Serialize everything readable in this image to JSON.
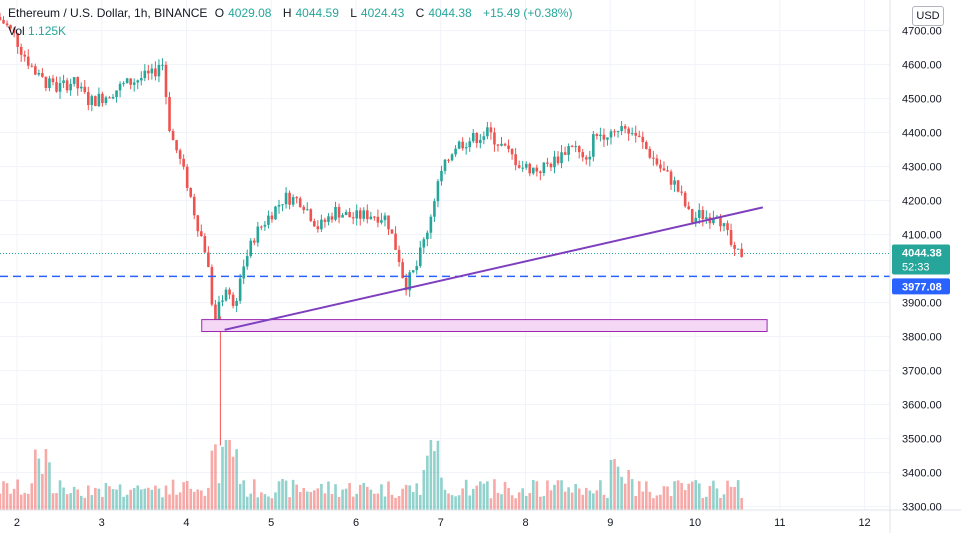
{
  "header": {
    "symbol": "Ethereum / U.S. Dollar, 1h, BINANCE",
    "open_label": "O",
    "open": "4029.08",
    "high_label": "H",
    "high": "4044.59",
    "low_label": "L",
    "low": "4024.43",
    "close_label": "C",
    "close": "4044.38",
    "change": "+15.49 (+0.38%)",
    "volume_label": "Vol",
    "volume": "1.125K"
  },
  "currency_button": "USD",
  "colors": {
    "up": "#26a69a",
    "down": "#ef5350",
    "trendline": "#7e3fbf",
    "support_line": "#2962ff",
    "zone_fill": "#f3d7f5",
    "zone_border": "#9c27b0"
  },
  "chart_data": {
    "type": "candlestick",
    "title": "Ethereum / U.S. Dollar, 1h, BINANCE",
    "x_ticks": [
      "2",
      "3",
      "4",
      "5",
      "6",
      "7",
      "8",
      "9",
      "10",
      "11",
      "12"
    ],
    "y_ticks": [
      "4700.00",
      "4600.00",
      "4500.00",
      "4400.00",
      "4300.00",
      "4200.00",
      "4100.00",
      "3900.00",
      "3800.00",
      "3700.00",
      "3600.00",
      "3500.00",
      "3400.00",
      "3300.00"
    ],
    "ylim": [
      3290,
      4790
    ],
    "xlim_days": [
      1.8,
      12.3
    ],
    "price_path_days": [
      1.8,
      1.9,
      2.0,
      2.1,
      2.3,
      2.5,
      2.7,
      2.9,
      3.1,
      3.3,
      3.5,
      3.65,
      3.75,
      3.85,
      3.95,
      4.05,
      4.15,
      4.28,
      4.37,
      4.42,
      4.5,
      4.6,
      4.7,
      4.85,
      5.0,
      5.2,
      5.4,
      5.6,
      5.8,
      6.0,
      6.2,
      6.4,
      6.55,
      6.62,
      6.75,
      6.9,
      7.0,
      7.2,
      7.4,
      7.6,
      7.8,
      8.0,
      8.2,
      8.4,
      8.6,
      8.75,
      8.85,
      9.0,
      9.2,
      9.35,
      9.5,
      9.65,
      9.8,
      9.9,
      10.0,
      10.1,
      10.2,
      10.3,
      10.38,
      10.45,
      10.52,
      10.55
    ],
    "price_path_close": [
      4740,
      4720,
      4690,
      4640,
      4560,
      4530,
      4550,
      4490,
      4510,
      4540,
      4560,
      4570,
      4620,
      4400,
      4330,
      4250,
      4150,
      4040,
      3840,
      3880,
      3950,
      3880,
      4000,
      4100,
      4150,
      4210,
      4200,
      4120,
      4170,
      4150,
      4160,
      4150,
      4030,
      3950,
      4000,
      4130,
      4250,
      4360,
      4380,
      4400,
      4350,
      4300,
      4290,
      4320,
      4370,
      4300,
      4390,
      4400,
      4420,
      4390,
      4340,
      4290,
      4250,
      4200,
      4140,
      4160,
      4150,
      4170,
      4120,
      4080,
      4030,
      4044.38
    ],
    "annotations": {
      "current_price": "4044.38",
      "countdown": "52:33",
      "support_price": "3977.08",
      "support_level": 3977.08,
      "zone": [
        3815,
        3850
      ],
      "zone_days": [
        4.18,
        10.85
      ],
      "trendline": [
        [
          4.45,
          3820
        ],
        [
          10.8,
          4180
        ]
      ]
    },
    "volume": {
      "typical": [
        150,
        400
      ],
      "spikes_days": [
        2.3,
        4.4,
        4.55,
        6.9,
        9.1
      ]
    }
  }
}
